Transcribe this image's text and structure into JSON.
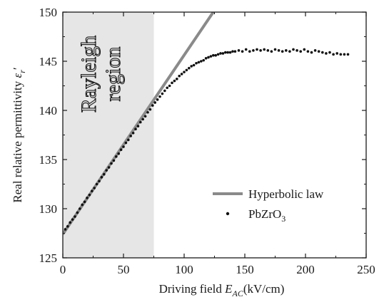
{
  "chart_data": {
    "type": "scatter",
    "xlabel": "Driving field",
    "xlabel_symbol": "E",
    "xlabel_subscript": "AC",
    "xlabel_unit": "(kV/cm)",
    "ylabel": "Real relative permittivity",
    "ylabel_symbol": "ε",
    "ylabel_subscript": "r",
    "ylabel_prime": "′",
    "xlim": [
      0,
      250
    ],
    "ylim": [
      125,
      150
    ],
    "x_ticks": [
      "0",
      "50",
      "100",
      "150",
      "200",
      "250"
    ],
    "y_ticks": [
      "125",
      "130",
      "135",
      "140",
      "145",
      "150"
    ],
    "grid": false,
    "legend_position": "bottom-right",
    "region": {
      "label_line1": "Rayleigh",
      "label_line2": "region",
      "x_range": [
        0,
        75
      ],
      "color": "#e6e6e6"
    },
    "series": [
      {
        "name": "Hyperbolic law",
        "kind": "line",
        "color": "#8a8a8a",
        "x": [
          0,
          124
        ],
        "y": [
          127.4,
          150
        ]
      },
      {
        "name": "PbZrO",
        "name_subscript": "3",
        "kind": "scatter",
        "color": "#111111",
        "x": [
          2,
          4,
          6,
          8,
          10,
          12,
          14,
          16,
          18,
          20,
          22,
          24,
          26,
          28,
          30,
          32,
          34,
          36,
          38,
          40,
          42,
          44,
          46,
          48,
          50,
          52,
          54,
          56,
          58,
          60,
          62,
          64,
          66,
          68,
          70,
          72,
          74,
          76,
          78,
          80,
          82,
          84,
          86,
          88,
          90,
          92,
          94,
          96,
          98,
          100,
          102,
          104,
          106,
          108,
          110,
          112,
          114,
          116,
          118,
          120,
          122,
          124,
          126,
          128,
          130,
          132,
          134,
          136,
          138,
          140,
          142,
          145,
          148,
          151,
          154,
          157,
          160,
          163,
          166,
          169,
          172,
          175,
          178,
          181,
          184,
          187,
          190,
          193,
          196,
          199,
          202,
          205,
          208,
          211,
          214,
          217,
          220,
          223,
          226,
          229,
          232,
          235
        ],
        "y": [
          127.9,
          128.2,
          128.6,
          128.9,
          129.2,
          129.6,
          130.0,
          130.4,
          130.7,
          131.1,
          131.4,
          131.8,
          132.1,
          132.5,
          132.8,
          133.2,
          133.5,
          133.9,
          134.2,
          134.6,
          134.9,
          135.3,
          135.6,
          136.0,
          136.3,
          136.7,
          137.0,
          137.4,
          137.7,
          138.1,
          138.4,
          138.8,
          139.1,
          139.4,
          139.8,
          140.1,
          140.5,
          140.8,
          141.1,
          141.4,
          141.7,
          142.0,
          142.3,
          142.5,
          142.8,
          143.0,
          143.2,
          143.5,
          143.7,
          143.9,
          144.1,
          144.3,
          144.5,
          144.6,
          144.8,
          144.9,
          145.0,
          145.1,
          145.3,
          145.4,
          145.5,
          145.6,
          145.6,
          145.7,
          145.8,
          145.8,
          145.9,
          145.9,
          145.9,
          146.0,
          146.0,
          146.1,
          146.0,
          146.2,
          146.0,
          146.1,
          146.2,
          146.1,
          146.2,
          146.1,
          146.0,
          146.2,
          146.1,
          146.0,
          146.1,
          146.0,
          146.2,
          146.1,
          146.0,
          146.2,
          146.0,
          145.9,
          146.1,
          146.0,
          145.9,
          145.8,
          145.9,
          145.7,
          145.8,
          145.7,
          145.7,
          145.7
        ]
      }
    ]
  }
}
